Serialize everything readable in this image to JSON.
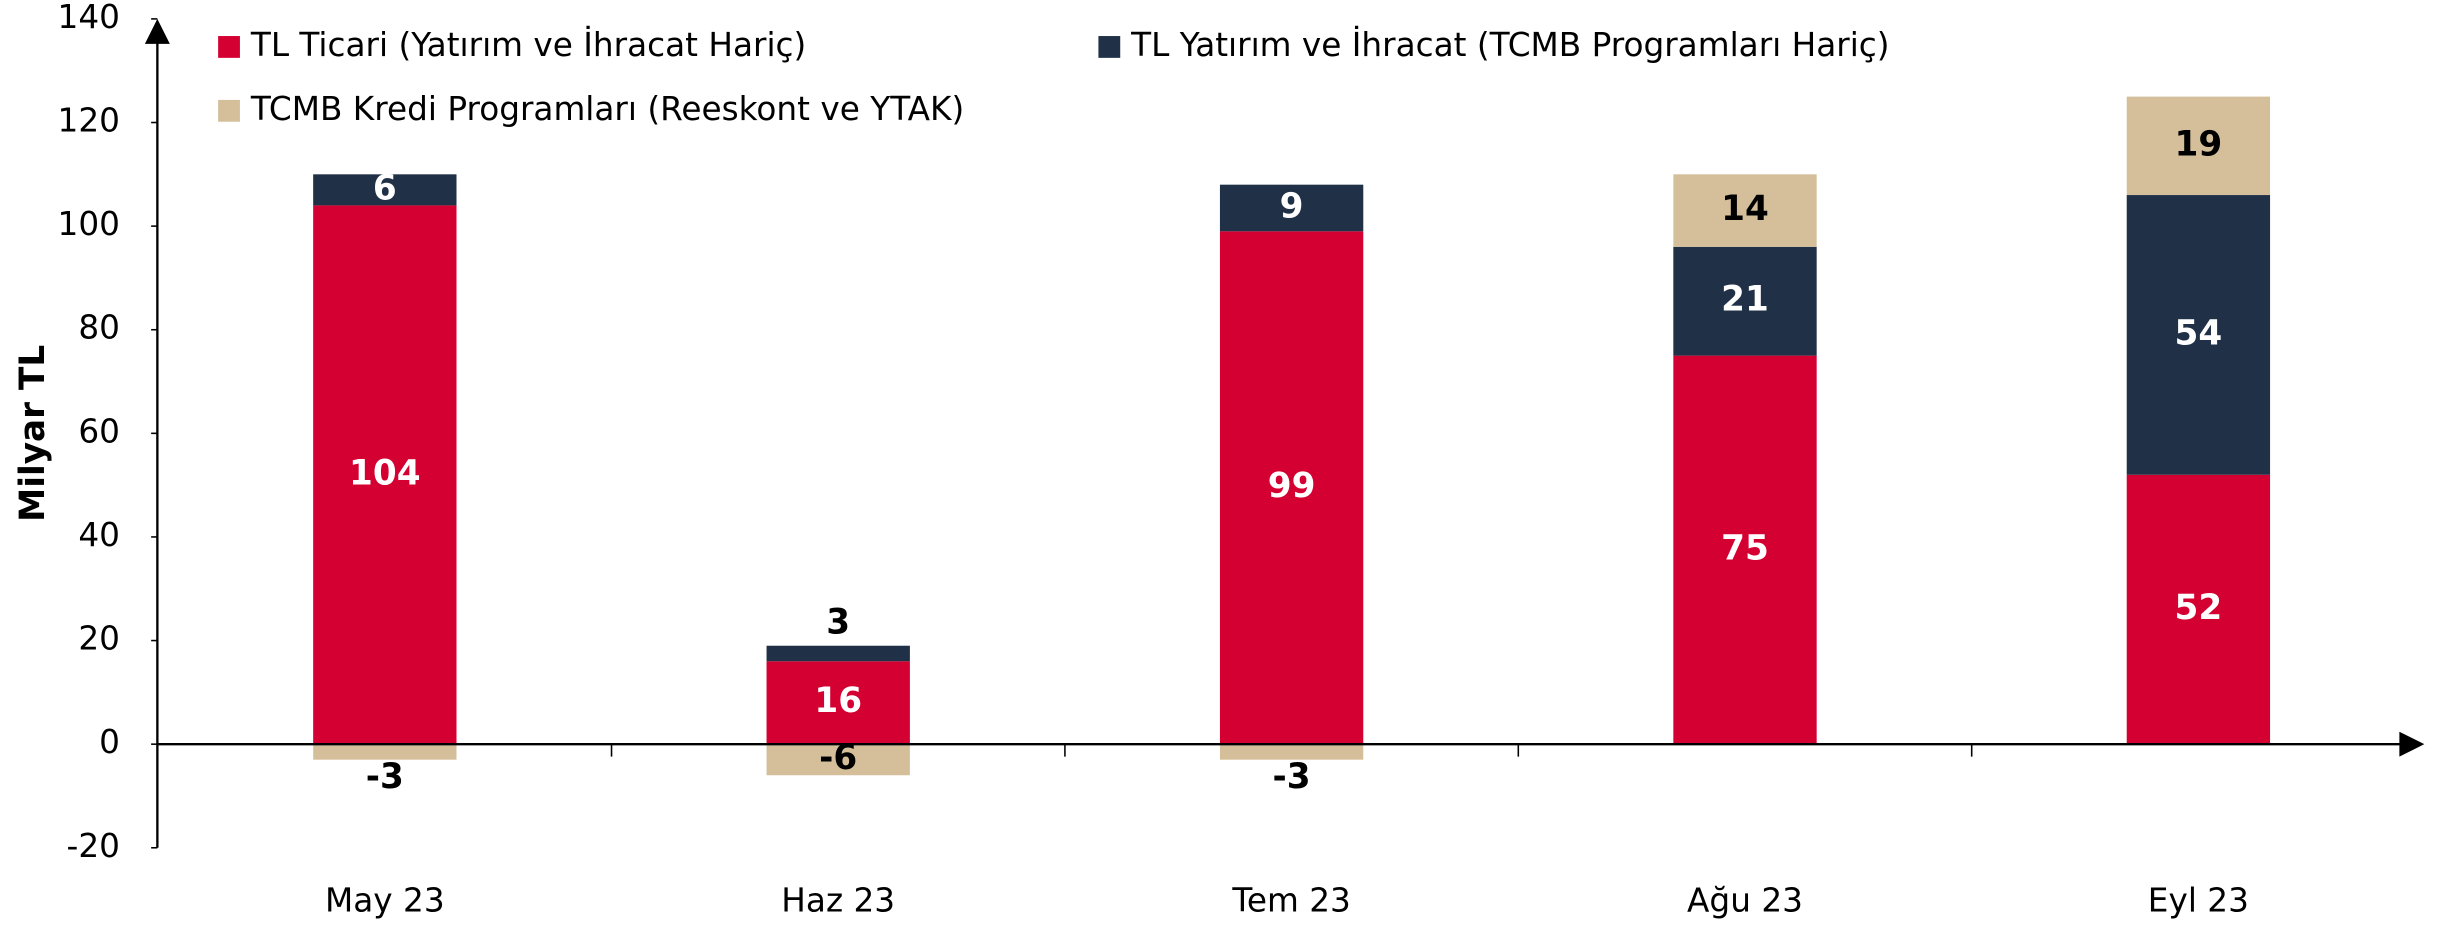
{
  "chart_data": {
    "type": "bar",
    "stacked": true,
    "ylabel": "Milyar TL",
    "categories": [
      "May 23",
      "Haz 23",
      "Tem 23",
      "Ağu 23",
      "Eyl 23"
    ],
    "series": [
      {
        "name": "TL Ticari (Yatırım ve İhracat Hariç)",
        "color": "#d50032",
        "label_color": "#ffffff",
        "values": [
          104,
          16,
          99,
          75,
          52
        ]
      },
      {
        "name": "TL Yatırım ve İhracat (TCMB Programları Hariç)",
        "color": "#1f3047",
        "label_color": "#ffffff",
        "values": [
          6,
          3,
          9,
          21,
          54
        ]
      },
      {
        "name": "TCMB Kredi Programları (Reeskont ve YTAK)",
        "color": "#d5bf9b",
        "label_color": "#000000",
        "values": [
          -3,
          -6,
          -3,
          14,
          19
        ]
      }
    ],
    "ylim": [
      -20,
      140
    ],
    "yticks": [
      -20,
      0,
      20,
      40,
      60,
      80,
      100,
      120,
      140
    ],
    "grid": false
  }
}
